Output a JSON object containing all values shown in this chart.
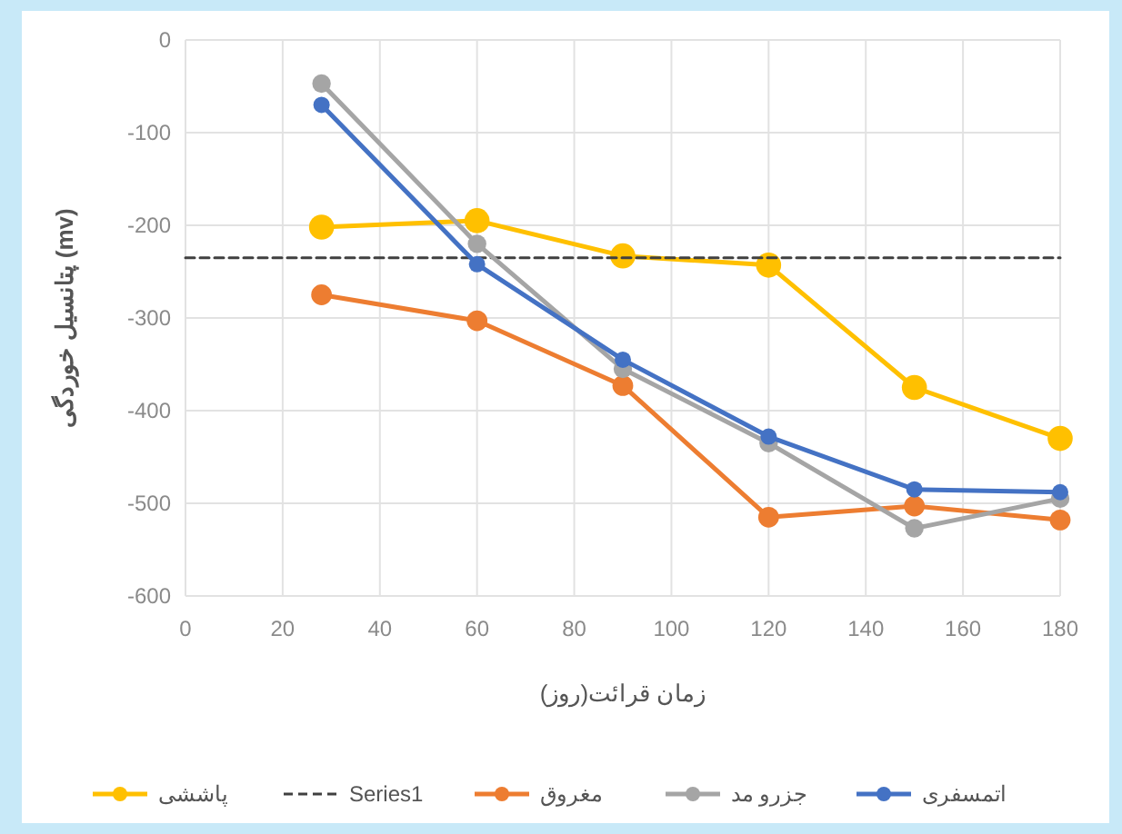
{
  "chart_data": {
    "type": "line",
    "xlabel": "زمان قرائت(روز)",
    "ylabel": "پتانسیل خوردگی (mv)",
    "x": [
      28,
      60,
      90,
      120,
      150,
      180
    ],
    "series": [
      {
        "name": "پاششی",
        "color": "#ffc000",
        "values": [
          -202,
          -195,
          -233,
          -243,
          -375,
          -430
        ]
      },
      {
        "name": "Series1",
        "color": "#404040",
        "x": [
          0,
          180
        ],
        "values": [
          -235,
          -235
        ],
        "marker": "none",
        "line_style": "dashed"
      },
      {
        "name": "مغروق",
        "color": "#ed7d31",
        "values": [
          -275,
          -303,
          -373,
          -515,
          -503,
          -518
        ]
      },
      {
        "name": "جزرو مد",
        "color": "#a5a5a5",
        "values": [
          -47,
          -220,
          -355,
          -435,
          -527,
          -495
        ]
      },
      {
        "name": "اتمسفری",
        "color": "#4472c4",
        "values": [
          -70,
          -242,
          -345,
          -428,
          -485,
          -488
        ]
      }
    ],
    "xlim": [
      0,
      180
    ],
    "ylim": [
      -600,
      0
    ],
    "xticks": [
      0,
      20,
      40,
      60,
      80,
      100,
      120,
      140,
      160,
      180
    ],
    "yticks": [
      -600,
      -500,
      -400,
      -300,
      -200,
      -100,
      0
    ],
    "grid": true,
    "legend": "bottom",
    "marker": "circle",
    "line_style": "solid"
  }
}
